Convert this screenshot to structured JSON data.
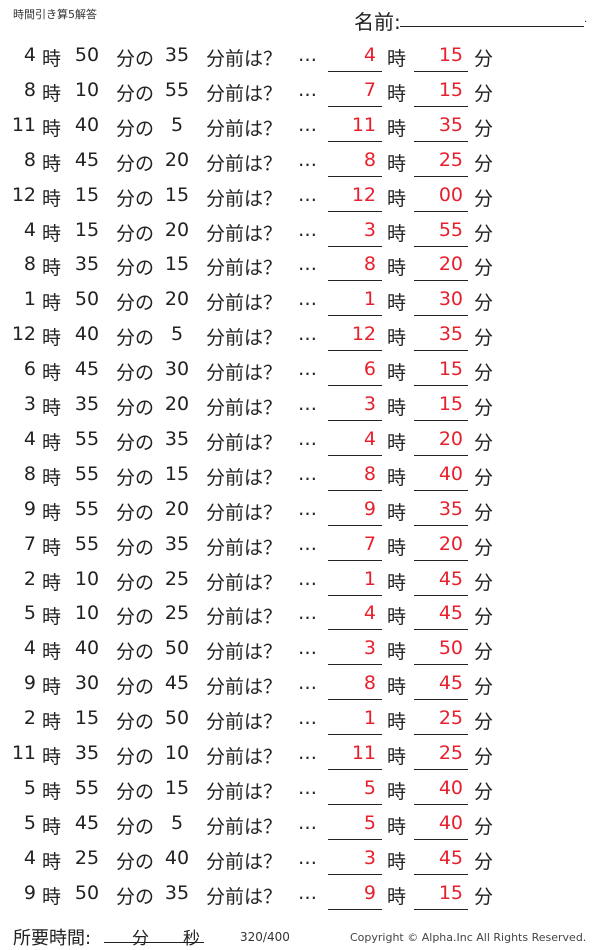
{
  "header": {
    "title": "時間引き算5解答",
    "name_label": "名前:",
    "name_end": "."
  },
  "labels": {
    "hour": "時",
    "min_of": "分の",
    "min_before": "分前は？",
    "dots": "…",
    "min": "分"
  },
  "rows": [
    {
      "h": "4",
      "m": "50",
      "s": "35",
      "ah": "4",
      "am": "15"
    },
    {
      "h": "8",
      "m": "10",
      "s": "55",
      "ah": "7",
      "am": "15"
    },
    {
      "h": "11",
      "m": "40",
      "s": "5",
      "ah": "11",
      "am": "35"
    },
    {
      "h": "8",
      "m": "45",
      "s": "20",
      "ah": "8",
      "am": "25"
    },
    {
      "h": "12",
      "m": "15",
      "s": "15",
      "ah": "12",
      "am": "00"
    },
    {
      "h": "4",
      "m": "15",
      "s": "20",
      "ah": "3",
      "am": "55"
    },
    {
      "h": "8",
      "m": "35",
      "s": "15",
      "ah": "8",
      "am": "20"
    },
    {
      "h": "1",
      "m": "50",
      "s": "20",
      "ah": "1",
      "am": "30"
    },
    {
      "h": "12",
      "m": "40",
      "s": "5",
      "ah": "12",
      "am": "35"
    },
    {
      "h": "6",
      "m": "45",
      "s": "30",
      "ah": "6",
      "am": "15"
    },
    {
      "h": "3",
      "m": "35",
      "s": "20",
      "ah": "3",
      "am": "15"
    },
    {
      "h": "4",
      "m": "55",
      "s": "35",
      "ah": "4",
      "am": "20"
    },
    {
      "h": "8",
      "m": "55",
      "s": "15",
      "ah": "8",
      "am": "40"
    },
    {
      "h": "9",
      "m": "55",
      "s": "20",
      "ah": "9",
      "am": "35"
    },
    {
      "h": "7",
      "m": "55",
      "s": "35",
      "ah": "7",
      "am": "20"
    },
    {
      "h": "2",
      "m": "10",
      "s": "25",
      "ah": "1",
      "am": "45"
    },
    {
      "h": "5",
      "m": "10",
      "s": "25",
      "ah": "4",
      "am": "45"
    },
    {
      "h": "4",
      "m": "40",
      "s": "50",
      "ah": "3",
      "am": "50"
    },
    {
      "h": "9",
      "m": "30",
      "s": "45",
      "ah": "8",
      "am": "45"
    },
    {
      "h": "2",
      "m": "15",
      "s": "50",
      "ah": "1",
      "am": "25"
    },
    {
      "h": "11",
      "m": "35",
      "s": "10",
      "ah": "11",
      "am": "25"
    },
    {
      "h": "5",
      "m": "55",
      "s": "15",
      "ah": "5",
      "am": "40"
    },
    {
      "h": "5",
      "m": "45",
      "s": "5",
      "ah": "5",
      "am": "40"
    },
    {
      "h": "4",
      "m": "25",
      "s": "40",
      "ah": "3",
      "am": "45"
    },
    {
      "h": "9",
      "m": "50",
      "s": "35",
      "ah": "9",
      "am": "15"
    }
  ],
  "footer": {
    "time_label": "所要時間:",
    "min": "分",
    "sec": "秒",
    "page": "320/400",
    "copyright": "Copyright ©  Alpha.Inc All Rights Reserved."
  },
  "colors": {
    "answer": "#e8202e"
  }
}
